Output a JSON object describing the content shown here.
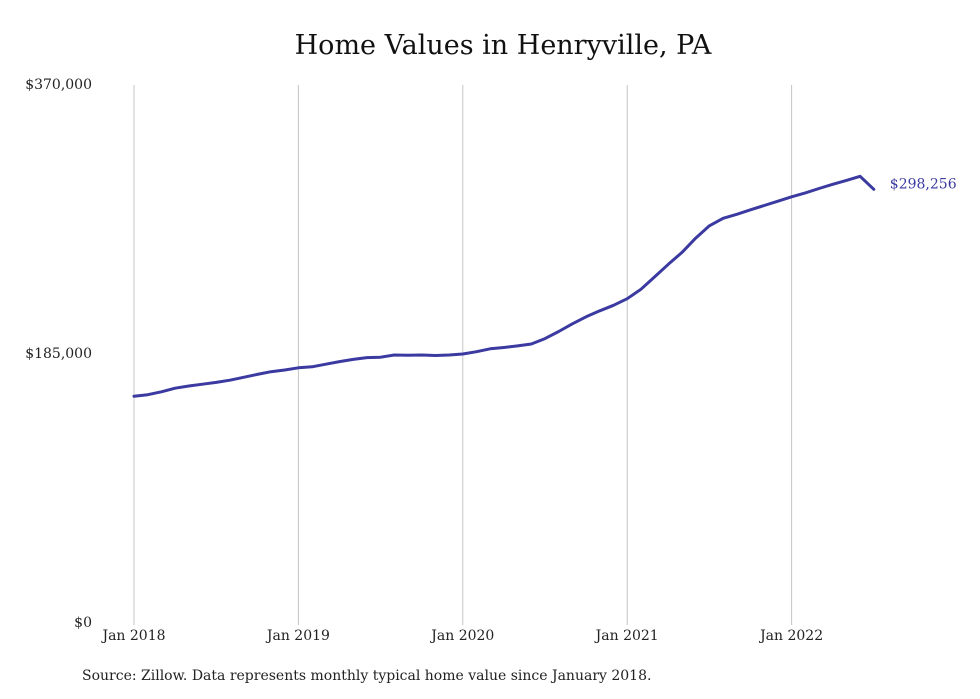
{
  "chart_data": {
    "type": "line",
    "title": "Home Values in Henryville, PA",
    "xlabel": "",
    "ylabel": "",
    "ylim": [
      0,
      370000
    ],
    "y_ticks": [
      0,
      185000,
      370000
    ],
    "y_tick_labels": [
      "$0",
      "$185,000",
      "$370,000"
    ],
    "x_tick_labels": [
      "Jan 2018",
      "Jan 2019",
      "Jan 2020",
      "Jan 2021",
      "Jan 2022"
    ],
    "grid": "vertical lines at January of each year",
    "line_color": "#3b3aa0",
    "series": [
      {
        "x": [
          "2018-01",
          "2018-02",
          "2018-03",
          "2018-04",
          "2018-05",
          "2018-06",
          "2018-07",
          "2018-08",
          "2018-09",
          "2018-10",
          "2018-11",
          "2018-12",
          "2019-01",
          "2019-02",
          "2019-03",
          "2019-04",
          "2019-05",
          "2019-06",
          "2019-07",
          "2019-08",
          "2019-09",
          "2019-10",
          "2019-11",
          "2019-12",
          "2020-01",
          "2020-02",
          "2020-03",
          "2020-04",
          "2020-05",
          "2020-06",
          "2020-07",
          "2020-08",
          "2020-09",
          "2020-10",
          "2020-11",
          "2020-12",
          "2021-01",
          "2021-02",
          "2021-03",
          "2021-04",
          "2021-05",
          "2021-06",
          "2021-07",
          "2021-08",
          "2021-09",
          "2021-10",
          "2021-11",
          "2021-12",
          "2022-01",
          "2022-02",
          "2022-03",
          "2022-04",
          "2022-05",
          "2022-06",
          "2022-07"
        ],
        "values": [
          156000,
          157000,
          159000,
          161500,
          163000,
          164200,
          165500,
          167000,
          169000,
          171000,
          172800,
          174000,
          175500,
          176200,
          178000,
          179800,
          181300,
          182500,
          182800,
          184300,
          184200,
          184300,
          184000,
          184300,
          185000,
          186600,
          188600,
          189500,
          190600,
          191900,
          195600,
          200500,
          205800,
          210600,
          214700,
          218500,
          223000,
          229500,
          238000,
          246700,
          254900,
          264700,
          273200,
          278300,
          281100,
          284200,
          287100,
          290100,
          293100,
          295800,
          298800,
          301700,
          304400,
          307200,
          298256
        ],
        "end_label": "$298,256"
      }
    ]
  },
  "source_note": "Source: Zillow. Data represents monthly typical home value since January 2018."
}
